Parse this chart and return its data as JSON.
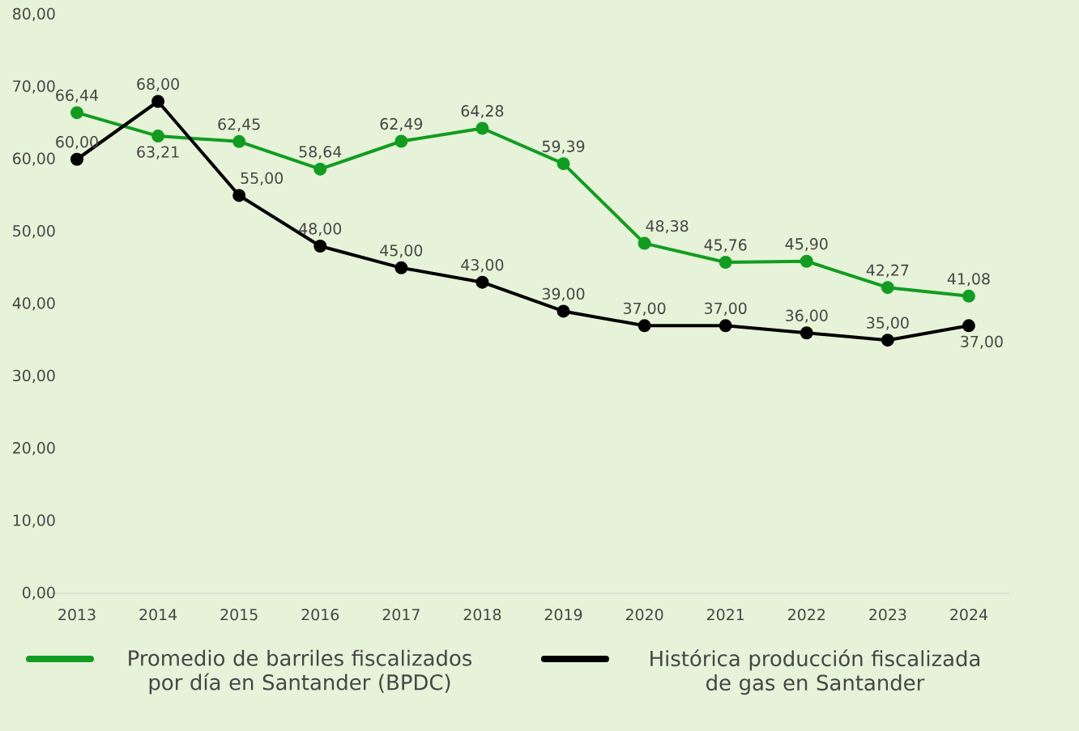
{
  "chart_data": {
    "type": "line",
    "categories": [
      "2013",
      "2014",
      "2015",
      "2016",
      "2017",
      "2018",
      "2019",
      "2020",
      "2021",
      "2022",
      "2023",
      "2024"
    ],
    "series": [
      {
        "name": "Promedio de barriles fiscalizados por día en Santander (BPDC)",
        "color": "#129c21",
        "values": [
          66.44,
          63.21,
          62.45,
          58.64,
          62.49,
          64.28,
          59.39,
          48.38,
          45.76,
          45.9,
          42.27,
          41.08
        ],
        "value_labels": [
          "66,44",
          "63,21",
          "62,45",
          "58,64",
          "62,49",
          "64,28",
          "59,39",
          "48,38",
          "45,76",
          "45,90",
          "42,27",
          "41,08"
        ]
      },
      {
        "name": "Histórica producción fiscalizada de gas en Santander",
        "color": "#000000",
        "values": [
          60,
          68,
          55,
          48,
          45,
          43,
          39,
          37,
          37,
          36,
          35,
          37
        ],
        "value_labels": [
          "60,00",
          "68,00",
          "55,00",
          "48,00",
          "45,00",
          "43,00",
          "39,00",
          "37,00",
          "37,00",
          "36,00",
          "35,00",
          "37,00"
        ]
      }
    ],
    "ylim": [
      0,
      80
    ],
    "yticks": [
      {
        "value": 0,
        "label": "0,00"
      },
      {
        "value": 10,
        "label": "10,00"
      },
      {
        "value": 20,
        "label": "20,00"
      },
      {
        "value": 30,
        "label": "30,00"
      },
      {
        "value": 40,
        "label": "40,00"
      },
      {
        "value": 50,
        "label": "50,00"
      },
      {
        "value": 60,
        "label": "60,00"
      },
      {
        "value": 70,
        "label": "70,00"
      },
      {
        "value": 80,
        "label": "80,00"
      }
    ],
    "grid": false,
    "legend": "bottom",
    "marker": "circle",
    "line_style": "solid"
  }
}
